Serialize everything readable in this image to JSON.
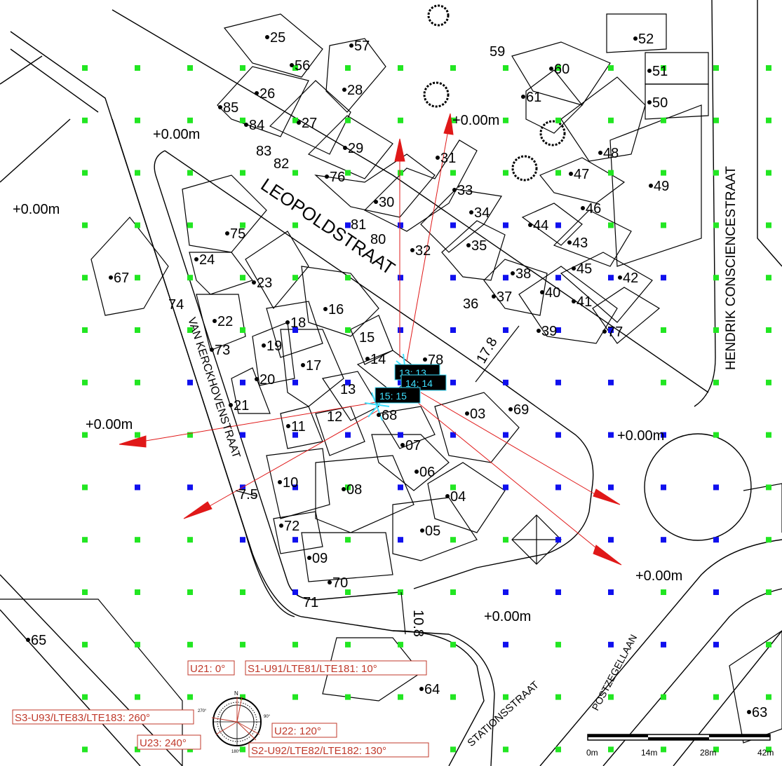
{
  "map": {
    "streets": [
      "LEOPOLDSTRAAT",
      "VAN KERCKHOVENSTRAAT",
      "HENDRIK CONSCIENCESTRAAT",
      "STATIONSSTRAAT",
      "POSTZEGELLAAN"
    ],
    "elevation_label": "+0.00m",
    "house_numbers": [
      "25",
      "56",
      "57",
      "59",
      "60",
      "52",
      "51",
      "50",
      "61",
      "26",
      "28",
      "85",
      "84",
      "27",
      "83",
      "82",
      "29",
      "76",
      "31",
      "48",
      "47",
      "49",
      "46",
      "33",
      "30",
      "34",
      "81",
      "80",
      "32",
      "35",
      "44",
      "43",
      "75",
      "24",
      "45",
      "38",
      "42",
      "67",
      "23",
      "40",
      "37",
      "41",
      "36",
      "74",
      "16",
      "22",
      "18",
      "15",
      "39",
      "77",
      "19",
      "73",
      "14",
      "78",
      "17",
      "20",
      "21",
      "13",
      "12",
      "68",
      "03",
      "69",
      "11",
      "07",
      "06",
      "10",
      "08",
      "04",
      "72",
      "05",
      "09",
      "70",
      "71",
      "65",
      "64",
      "63"
    ],
    "dimensions": [
      "17.8",
      "7.5",
      "10.8"
    ],
    "site_labels": [
      "13: 13",
      "14: 14",
      "15: 15"
    ],
    "legend": {
      "north": "N",
      "compass": [
        "270°",
        "90°",
        "180°"
      ],
      "sectors": [
        "U21: 0°",
        "S1-U91/LTE81/LTE181: 10°",
        "S3-U93/LTE83/LTE183: 260°",
        "U22: 120°",
        "U23: 240°",
        "S2-U92/LTE82/LTE182: 130°"
      ]
    },
    "scale_bar": [
      "0m",
      "14m",
      "28m",
      "42m"
    ],
    "colors": {
      "grid_green": "#22e622",
      "grid_blue": "#1010ee",
      "arrow": "#e01818",
      "site": "#3ee0ff",
      "label_red": "#c0392b"
    }
  }
}
